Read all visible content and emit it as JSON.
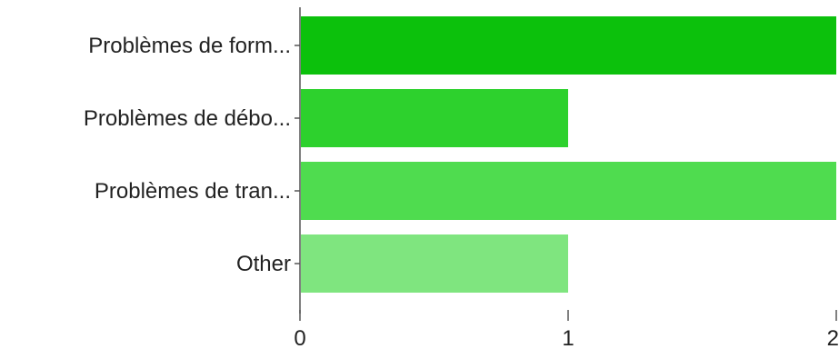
{
  "chart_data": {
    "type": "bar",
    "orientation": "horizontal",
    "categories": [
      "Problèmes de form...",
      "Problèmes de débo...",
      "Problèmes de tran...",
      "Other"
    ],
    "values": [
      2,
      1,
      2,
      1
    ],
    "colors": [
      "#0cc10c",
      "#2dd12d",
      "#4fdc4f",
      "#7fe57f"
    ],
    "title": "",
    "xlabel": "",
    "ylabel": "",
    "xlim": [
      0,
      2
    ],
    "x_ticks": [
      0,
      1,
      2
    ],
    "x_tick_labels": [
      "0",
      "1",
      "2"
    ],
    "grid": false,
    "legend": "none"
  }
}
